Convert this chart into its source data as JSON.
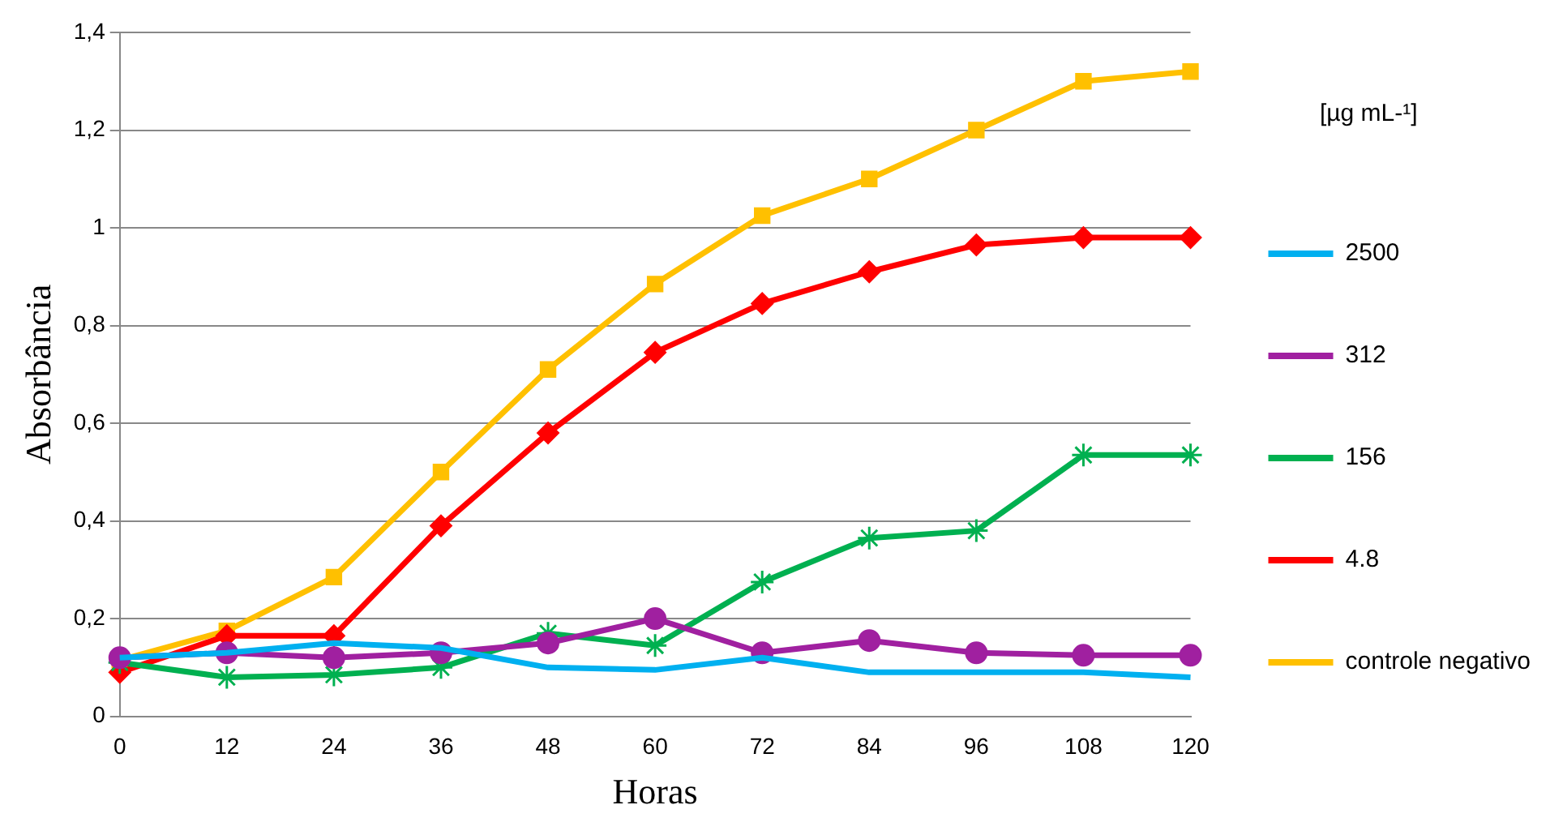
{
  "chart_data": {
    "type": "line",
    "xlabel": "Horas",
    "ylabel": "Absorbância",
    "legend_title": "[µg mL-¹]",
    "categories": [
      "0",
      "12",
      "24",
      "36",
      "48",
      "60",
      "72",
      "84",
      "96",
      "108",
      "120"
    ],
    "ylim": [
      0,
      1.4
    ],
    "yticks": [
      0,
      {
        "value": 0.2,
        "label": "0,2"
      },
      {
        "value": 0.4,
        "label": "0,4"
      },
      {
        "value": 0.6,
        "label": "0,6"
      },
      {
        "value": 0.8,
        "label": "0,8"
      },
      1,
      {
        "value": 1.2,
        "label": "1,2"
      },
      {
        "value": 1.4,
        "label": "1,4"
      }
    ],
    "grid": "y",
    "legend": "right",
    "line_style": "solid",
    "series": [
      {
        "name": "2500",
        "color": "#00b0f0",
        "marker": "none",
        "values": [
          0.12,
          0.13,
          0.15,
          0.14,
          0.1,
          0.095,
          0.12,
          0.09,
          0.09,
          0.09,
          0.08
        ]
      },
      {
        "name": "312",
        "color": "#a020a0",
        "marker": "circle",
        "values": [
          0.12,
          0.13,
          0.12,
          0.13,
          0.15,
          0.2,
          0.13,
          0.155,
          0.13,
          0.125,
          0.125
        ]
      },
      {
        "name": "156",
        "color": "#00b050",
        "marker": "cross",
        "values": [
          0.11,
          0.08,
          0.085,
          0.1,
          0.17,
          0.145,
          0.275,
          0.365,
          0.38,
          0.535,
          0.535
        ]
      },
      {
        "name": "4.8",
        "color": "#ff0000",
        "marker": "diamond",
        "values": [
          0.09,
          0.165,
          0.165,
          0.39,
          0.58,
          0.745,
          0.845,
          0.91,
          0.965,
          0.98,
          0.98
        ]
      },
      {
        "name": "controle negativo",
        "color": "#ffc000",
        "marker": "square",
        "values": [
          0.115,
          0.175,
          0.285,
          0.5,
          0.71,
          0.885,
          1.025,
          1.1,
          1.2,
          1.3,
          1.32
        ]
      }
    ]
  }
}
